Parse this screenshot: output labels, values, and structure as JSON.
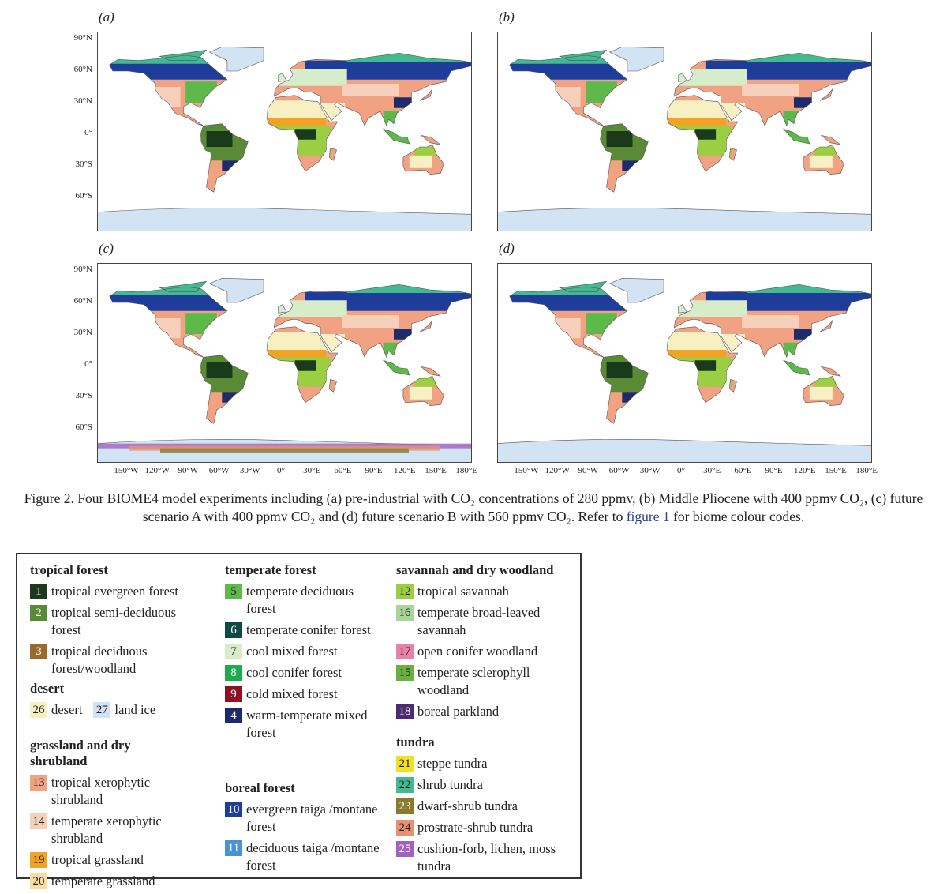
{
  "panels": [
    {
      "label": "(a)"
    },
    {
      "label": "(b)"
    },
    {
      "label": "(c)"
    },
    {
      "label": "(d)"
    }
  ],
  "lat_ticks": [
    "90°N",
    "60°N",
    "30°N",
    "0°",
    "30°S",
    "60°S"
  ],
  "lon_ticks": [
    "150°W",
    "120°W",
    "90°W",
    "60°W",
    "30°W",
    "0°",
    "30°E",
    "60°E",
    "90°E",
    "120°E",
    "150°E",
    "180°E"
  ],
  "caption": {
    "before": "Figure 2. Four BIOME4 model experiments including (a) pre-industrial with CO₂ concentrations of 280 ppmv, (b) Middle Pliocene with 400 ppmv CO₂, (c) future scenario A with 400 ppmv CO₂ and (d) future scenario B with 560 ppmv CO₂. Refer to ",
    "link": "figure 1",
    "after": " for biome colour codes."
  },
  "legend": {
    "groups": [
      {
        "title": "tropical forest",
        "items": [
          {
            "code": "1",
            "label": "tropical evergreen forest",
            "color": "#1b3a1c"
          },
          {
            "code": "2",
            "label": "tropical semi-deciduous forest",
            "color": "#5b8a36"
          },
          {
            "code": "3",
            "label": "tropical deciduous forest/woodland",
            "color": "#9a6a2c"
          }
        ]
      },
      {
        "title": "desert",
        "items": [
          {
            "code": "26",
            "label": "desert",
            "color": "#f8f0c2"
          },
          {
            "code": "27",
            "label": "land ice",
            "color": "#d2e3f4"
          }
        ]
      },
      {
        "title": "grassland and dry shrubland",
        "items": [
          {
            "code": "13",
            "label": "tropical xerophytic shrubland",
            "color": "#f0a283"
          },
          {
            "code": "14",
            "label": "temperate xerophytic shrubland",
            "color": "#f7d0bb"
          },
          {
            "code": "19",
            "label": "tropical grassland",
            "color": "#f2a225"
          },
          {
            "code": "20",
            "label": "temperate grassland",
            "color": "#fcdaa2"
          }
        ]
      },
      {
        "title": "temperate forest",
        "items": [
          {
            "code": "5",
            "label": "temperate deciduous forest",
            "color": "#5cb94a"
          },
          {
            "code": "6",
            "label": "temperate conifer forest",
            "color": "#0f4a42"
          },
          {
            "code": "7",
            "label": "cool mixed forest",
            "color": "#d7edc9"
          },
          {
            "code": "8",
            "label": "cool conifer forest",
            "color": "#1faa4b"
          },
          {
            "code": "9",
            "label": "cold mixed forest",
            "color": "#8c1222"
          },
          {
            "code": "4",
            "label": "warm-temperate mixed forest",
            "color": "#1d2a6b"
          }
        ]
      },
      {
        "title": "boreal forest",
        "items": [
          {
            "code": "10",
            "label": "evergreen taiga /montane forest",
            "color": "#1e3d9b"
          },
          {
            "code": "11",
            "label": "deciduous taiga /montane forest",
            "color": "#4a92d2"
          }
        ]
      },
      {
        "title": "savannah and dry woodland",
        "items": [
          {
            "code": "12",
            "label": "tropical savannah",
            "color": "#9bce42"
          },
          {
            "code": "16",
            "label": "temperate broad-leaved savannah",
            "color": "#a9d59b"
          },
          {
            "code": "17",
            "label": "open conifer woodland",
            "color": "#e982aa"
          },
          {
            "code": "15",
            "label": "temperate sclerophyll woodland",
            "color": "#6ab142"
          },
          {
            "code": "18",
            "label": "boreal parkland",
            "color": "#4b2b71"
          }
        ]
      },
      {
        "title": "tundra",
        "items": [
          {
            "code": "21",
            "label": "steppe tundra",
            "color": "#f1e122"
          },
          {
            "code": "22",
            "label": "shrub tundra",
            "color": "#42b991"
          },
          {
            "code": "23",
            "label": "dwarf-shrub tundra",
            "color": "#8a7a2b"
          },
          {
            "code": "24",
            "label": "prostrate-shrub tundra",
            "color": "#e99272"
          },
          {
            "code": "25",
            "label": "cushion-forb, lichen, moss tundra",
            "color": "#a262c2"
          }
        ]
      }
    ]
  }
}
